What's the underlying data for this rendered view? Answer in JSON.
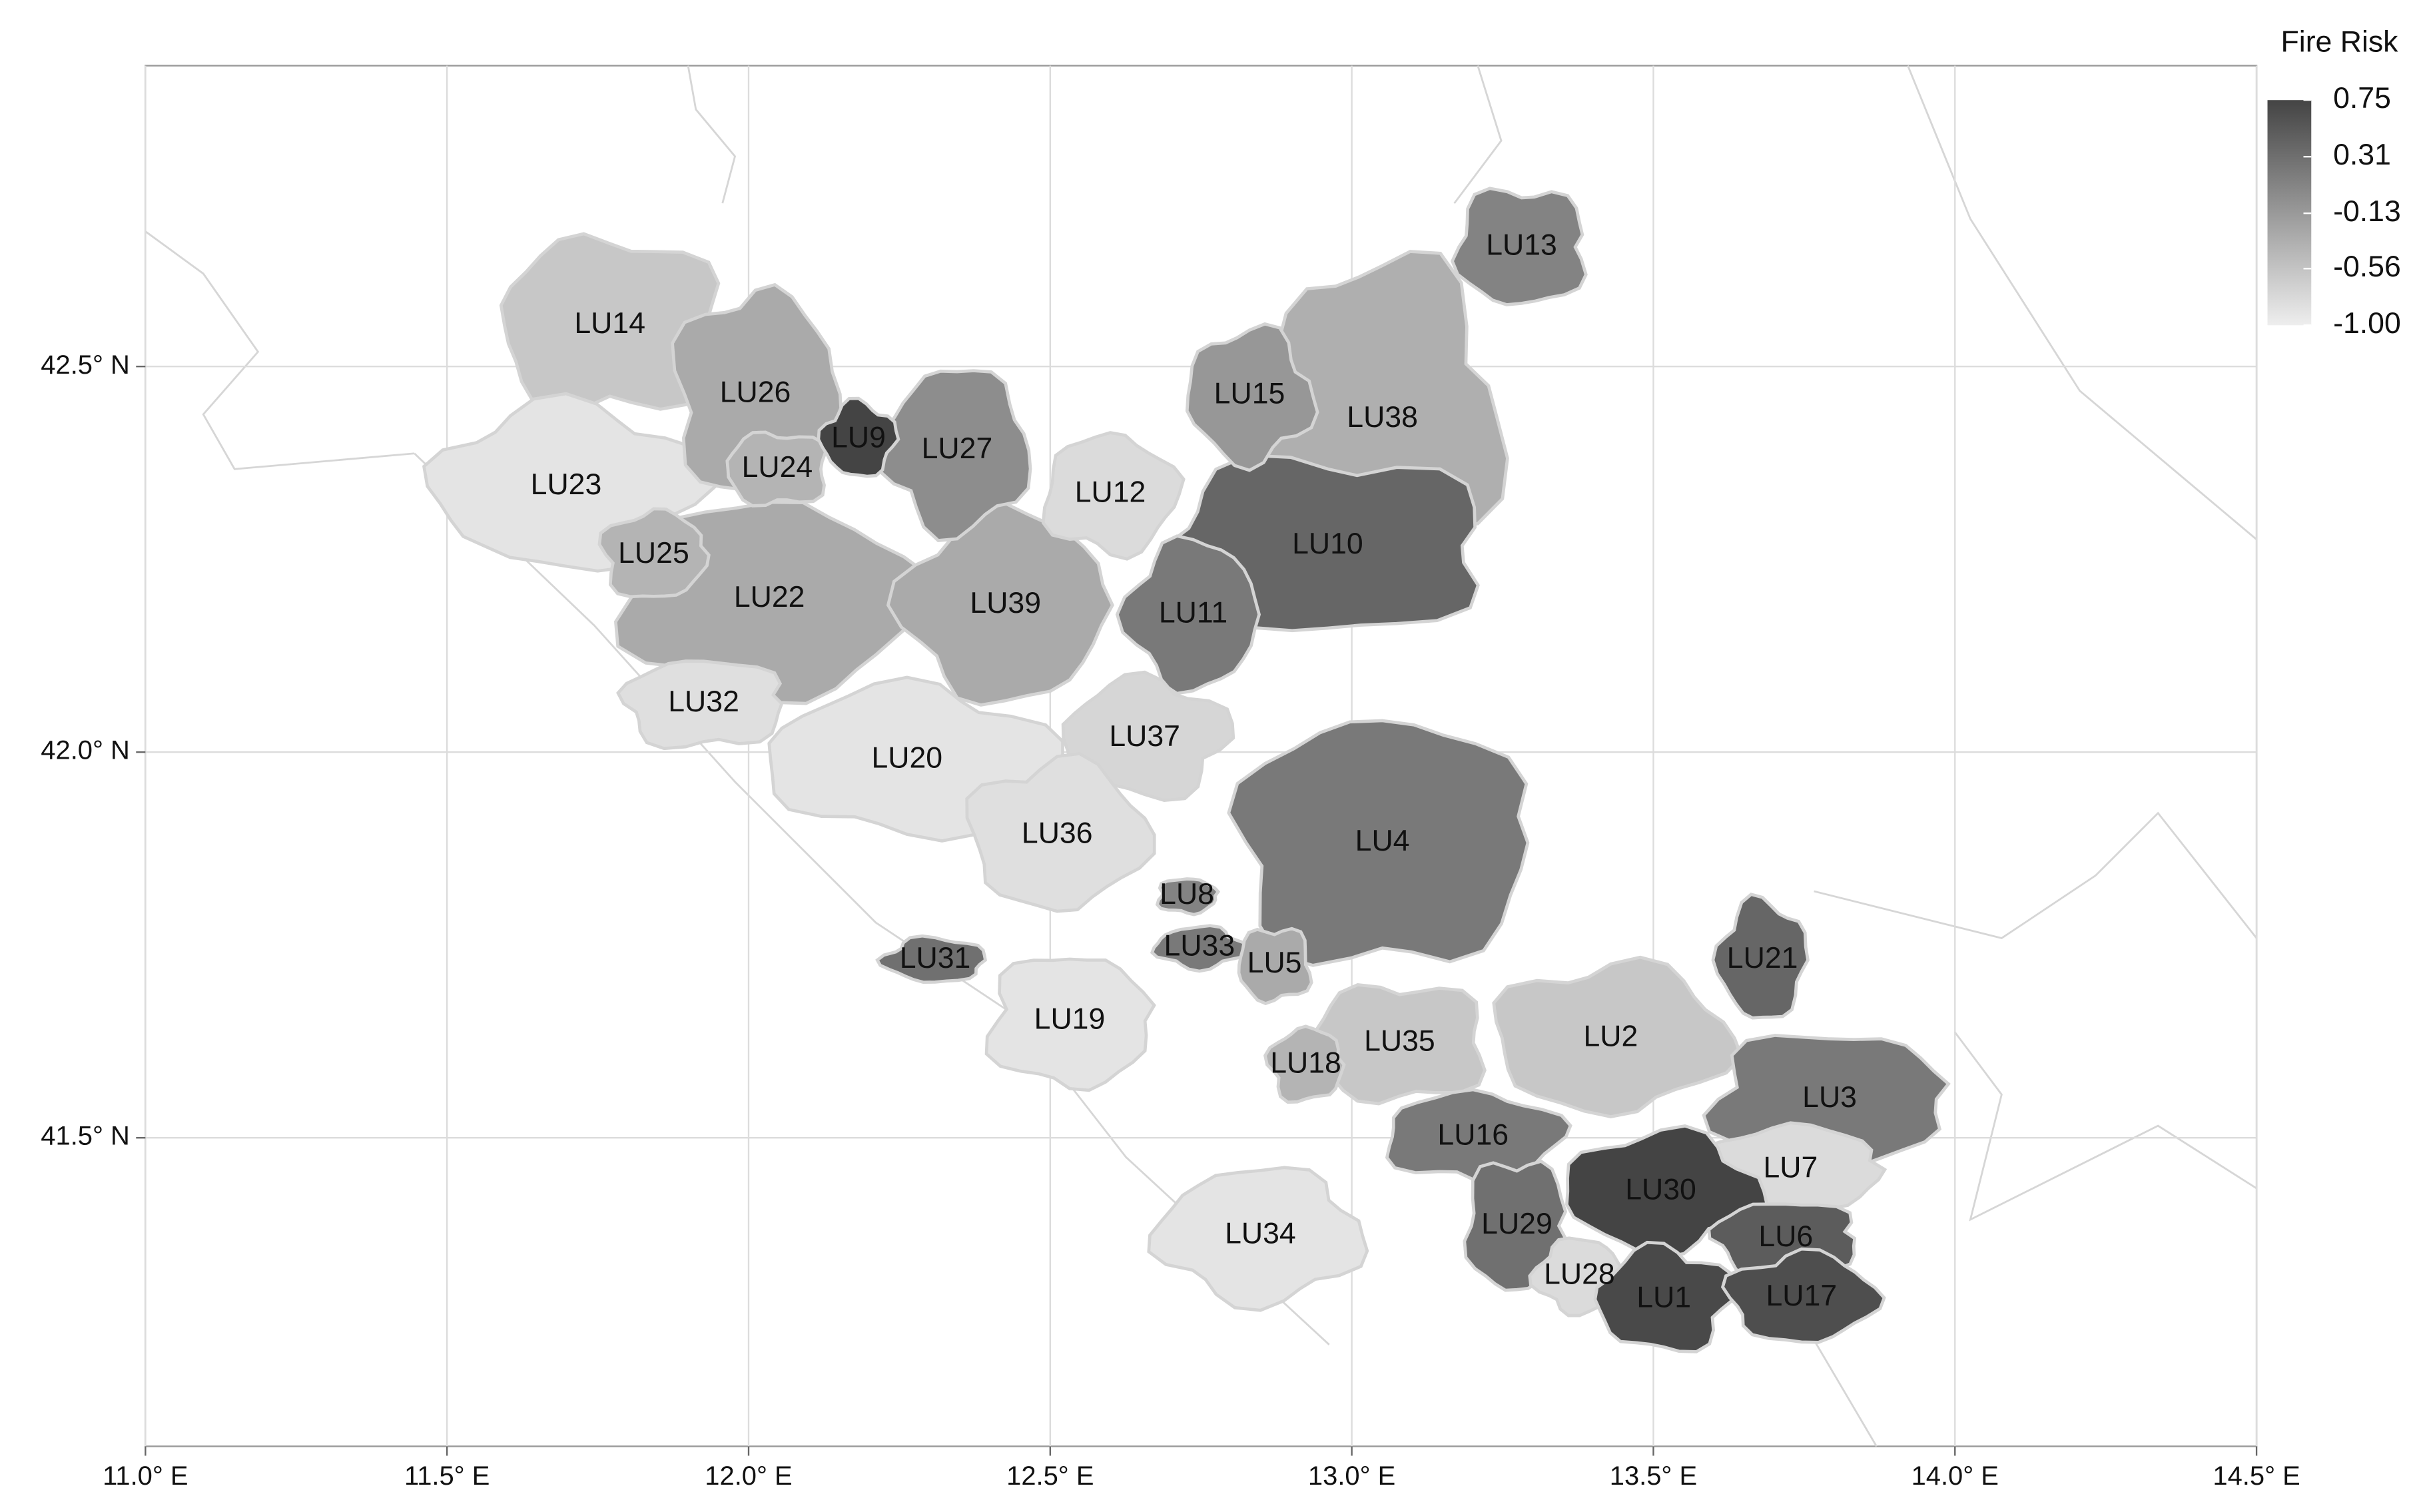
{
  "chart_data": {
    "type": "choropleth",
    "xlim": [
      11.0,
      14.5
    ],
    "ylim": [
      41.1,
      42.89
    ],
    "xticks": [
      {
        "value": 11.0,
        "label": "11.0° E"
      },
      {
        "value": 11.5,
        "label": "11.5° E"
      },
      {
        "value": 12.0,
        "label": "12.0° E"
      },
      {
        "value": 12.5,
        "label": "12.5° E"
      },
      {
        "value": 13.0,
        "label": "13.0° E"
      },
      {
        "value": 13.5,
        "label": "13.5° E"
      },
      {
        "value": 14.0,
        "label": "14.0° E"
      },
      {
        "value": 14.5,
        "label": "14.5° E"
      }
    ],
    "yticks": [
      {
        "value": 41.5,
        "label": "41.5° N"
      },
      {
        "value": 42.0,
        "label": "42.0° N"
      },
      {
        "value": 42.5,
        "label": "42.5° N"
      }
    ],
    "grid": true,
    "legend": {
      "title": "Fire Risk",
      "colors": [
        "#eeeeee",
        "#444444"
      ],
      "ticks": [
        0.75,
        0.31,
        -0.13,
        -0.56,
        {
          "value": -1.0,
          "label": "-1.00"
        }
      ]
    },
    "regions": [
      {
        "name": "LU14",
        "value": -0.6
      },
      {
        "name": "LU23",
        "value": -0.9
      },
      {
        "name": "LU26",
        "value": -0.3
      },
      {
        "name": "LU22",
        "value": -0.3
      },
      {
        "name": "LU38",
        "value": -0.35
      },
      {
        "name": "LU10",
        "value": 0.4
      },
      {
        "name": "LU39",
        "value": -0.3
      },
      {
        "name": "LU4",
        "value": 0.2
      },
      {
        "name": "LU20",
        "value": -0.9
      },
      {
        "name": "LU2",
        "value": -0.6
      },
      {
        "name": "LU3",
        "value": 0.2
      },
      {
        "name": "LU27",
        "value": 0.0
      },
      {
        "name": "LU24",
        "value": -0.4
      },
      {
        "name": "LU9",
        "value": 0.75
      },
      {
        "name": "LU25",
        "value": -0.4
      },
      {
        "name": "LU12",
        "value": -0.8
      },
      {
        "name": "LU15",
        "value": -0.1
      },
      {
        "name": "LU13",
        "value": 0.1
      },
      {
        "name": "LU11",
        "value": 0.2
      },
      {
        "name": "LU32",
        "value": -0.85
      },
      {
        "name": "LU37",
        "value": -0.75
      },
      {
        "name": "LU36",
        "value": -0.85
      },
      {
        "name": "LU19",
        "value": -0.9
      },
      {
        "name": "LU34",
        "value": -0.9
      },
      {
        "name": "LU35",
        "value": -0.6
      },
      {
        "name": "LU21",
        "value": 0.4
      },
      {
        "name": "LU7",
        "value": -0.8
      },
      {
        "name": "LU16",
        "value": 0.2
      },
      {
        "name": "LU30",
        "value": 0.75
      },
      {
        "name": "LU29",
        "value": 0.3
      },
      {
        "name": "LU28",
        "value": -0.8
      },
      {
        "name": "LU6",
        "value": 0.5
      },
      {
        "name": "LU1",
        "value": 0.7
      },
      {
        "name": "LU17",
        "value": 0.65
      },
      {
        "name": "LU8",
        "value": 0.1
      },
      {
        "name": "LU33",
        "value": 0.2
      },
      {
        "name": "LU5",
        "value": -0.3
      },
      {
        "name": "LU31",
        "value": 0.3
      },
      {
        "name": "LU18",
        "value": -0.4
      }
    ]
  }
}
